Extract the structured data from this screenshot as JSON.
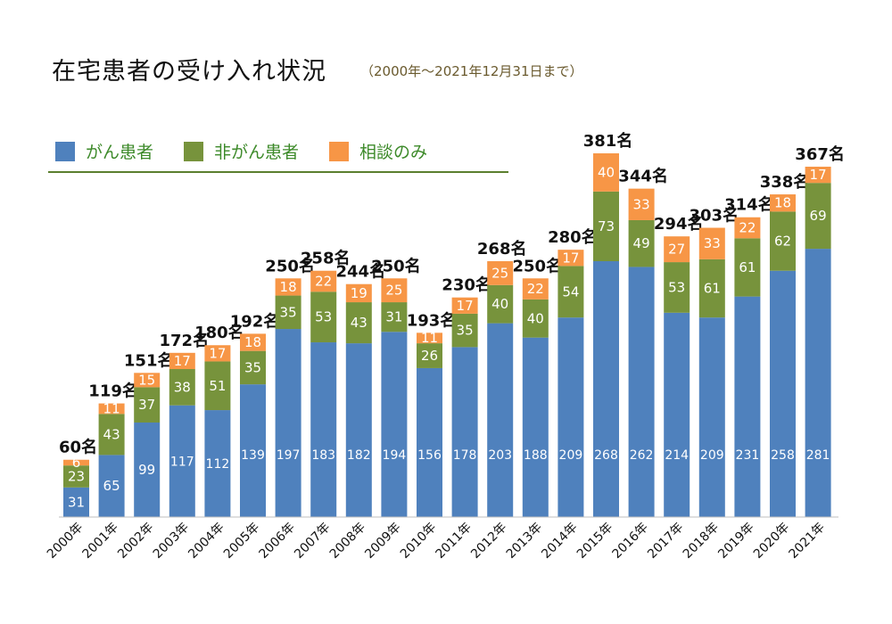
{
  "header": {
    "title": "在宅患者の受け入れ状況",
    "subtitle": "（2000年～2021年12月31日まで）"
  },
  "legend": {
    "items": [
      {
        "label": "がん患者",
        "color": "#4f81bd"
      },
      {
        "label": "非がん患者",
        "color": "#77933c"
      },
      {
        "label": "相談のみ",
        "color": "#f79646"
      }
    ]
  },
  "chart_data": {
    "type": "bar",
    "stacked": true,
    "categories": [
      "2000年",
      "2001年",
      "2002年",
      "2003年",
      "2004年",
      "2005年",
      "2006年",
      "2007年",
      "2008年",
      "2009年",
      "2010年",
      "2011年",
      "2012年",
      "2013年",
      "2014年",
      "2015年",
      "2016年",
      "2017年",
      "2018年",
      "2019年",
      "2020年",
      "2021年"
    ],
    "series": [
      {
        "name": "がん患者",
        "color": "#4f81bd",
        "values": [
          31,
          65,
          99,
          117,
          112,
          139,
          197,
          183,
          182,
          194,
          156,
          178,
          203,
          188,
          209,
          268,
          262,
          214,
          209,
          231,
          258,
          281
        ]
      },
      {
        "name": "非がん患者",
        "color": "#77933c",
        "values": [
          23,
          43,
          37,
          38,
          51,
          35,
          35,
          53,
          43,
          31,
          26,
          35,
          40,
          40,
          54,
          73,
          49,
          53,
          61,
          61,
          62,
          69
        ]
      },
      {
        "name": "相談のみ",
        "color": "#f79646",
        "values": [
          6,
          11,
          15,
          17,
          17,
          18,
          18,
          22,
          19,
          25,
          11,
          17,
          25,
          22,
          17,
          40,
          33,
          27,
          33,
          22,
          18,
          17
        ]
      }
    ],
    "totals": [
      "60名",
      "119名",
      "151名",
      "172名",
      "180名",
      "192名",
      "250名",
      "258名",
      "244名",
      "250名",
      "193名",
      "230名",
      "268名",
      "250名",
      "280名",
      "381名",
      "344名",
      "294名",
      "303名",
      "314名",
      "338名",
      "367名"
    ],
    "ylim": [
      0,
      381
    ],
    "grid": false,
    "legend_position": "top-left"
  }
}
